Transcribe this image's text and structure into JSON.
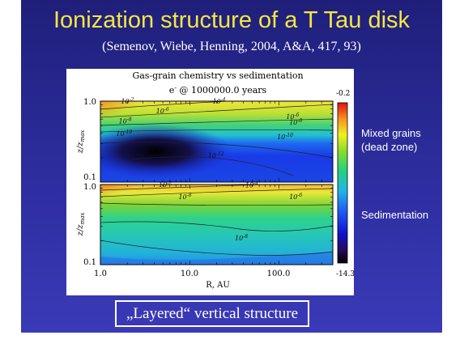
{
  "slide": {
    "title": "Ionization structure of a T Tau disk",
    "subtitle": "(Semenov, Wiebe, Henning, 2004, A&A, 417, 93)",
    "caption": "„Layered“ vertical structure"
  },
  "annotations": {
    "upper_panel_line1": "Mixed grains",
    "upper_panel_line2": "(dead zone)",
    "lower_panel": "Sedimentation"
  },
  "chart_data": {
    "type": "heatmap",
    "title": "Gas-grain chemistry vs sedimentation",
    "subtitle_prefix": "e",
    "subtitle_sup": "-",
    "subtitle_rest": " @ 1000000.0 years",
    "xlabel": "R, AU",
    "xscale": "log",
    "xlim": [
      1.0,
      400.0
    ],
    "xticks": [
      "1.0",
      "10.0",
      "100.0"
    ],
    "ylabel": "z/z",
    "ylabel_sub": "max",
    "ylim": [
      0.1,
      1.0
    ],
    "yticks": [
      "1.0",
      "0.1"
    ],
    "colorbar": {
      "min_label": "-14.3",
      "max_label": "-0.2",
      "min": -14.3,
      "max": -0.2
    },
    "panels": [
      {
        "name": "Mixed grains (dead zone)",
        "contour_labels": [
          {
            "text": "10",
            "exp": "-2",
            "r": 1.7,
            "z": 0.93
          },
          {
            "text": "10",
            "exp": "-4",
            "r": 18,
            "z": 0.93
          },
          {
            "text": "10",
            "exp": "-6",
            "r": 4.2,
            "z": 0.71
          },
          {
            "text": "10",
            "exp": "-6",
            "r": 120,
            "z": 0.6
          },
          {
            "text": "10",
            "exp": "-8",
            "r": 1.6,
            "z": 0.53
          },
          {
            "text": "10",
            "exp": "-8",
            "r": 130,
            "z": 0.51
          },
          {
            "text": "10",
            "exp": "-10",
            "r": 1.5,
            "z": 0.37
          },
          {
            "text": "10",
            "exp": "-10",
            "r": 95,
            "z": 0.34
          },
          {
            "text": "10",
            "exp": "-12",
            "r": 16,
            "z": 0.2
          }
        ]
      },
      {
        "name": "Sedimentation",
        "contour_labels": [
          {
            "text": "10",
            "exp": "-2",
            "r": 4.5,
            "z": 0.93
          },
          {
            "text": "10",
            "exp": "-4",
            "r": 42,
            "z": 0.92
          },
          {
            "text": "10",
            "exp": "-8",
            "r": 7.5,
            "z": 0.66
          },
          {
            "text": "10",
            "exp": "-6",
            "r": 130,
            "z": 0.66
          },
          {
            "text": "10",
            "exp": "-8",
            "r": 32,
            "z": 0.2
          }
        ]
      }
    ]
  }
}
